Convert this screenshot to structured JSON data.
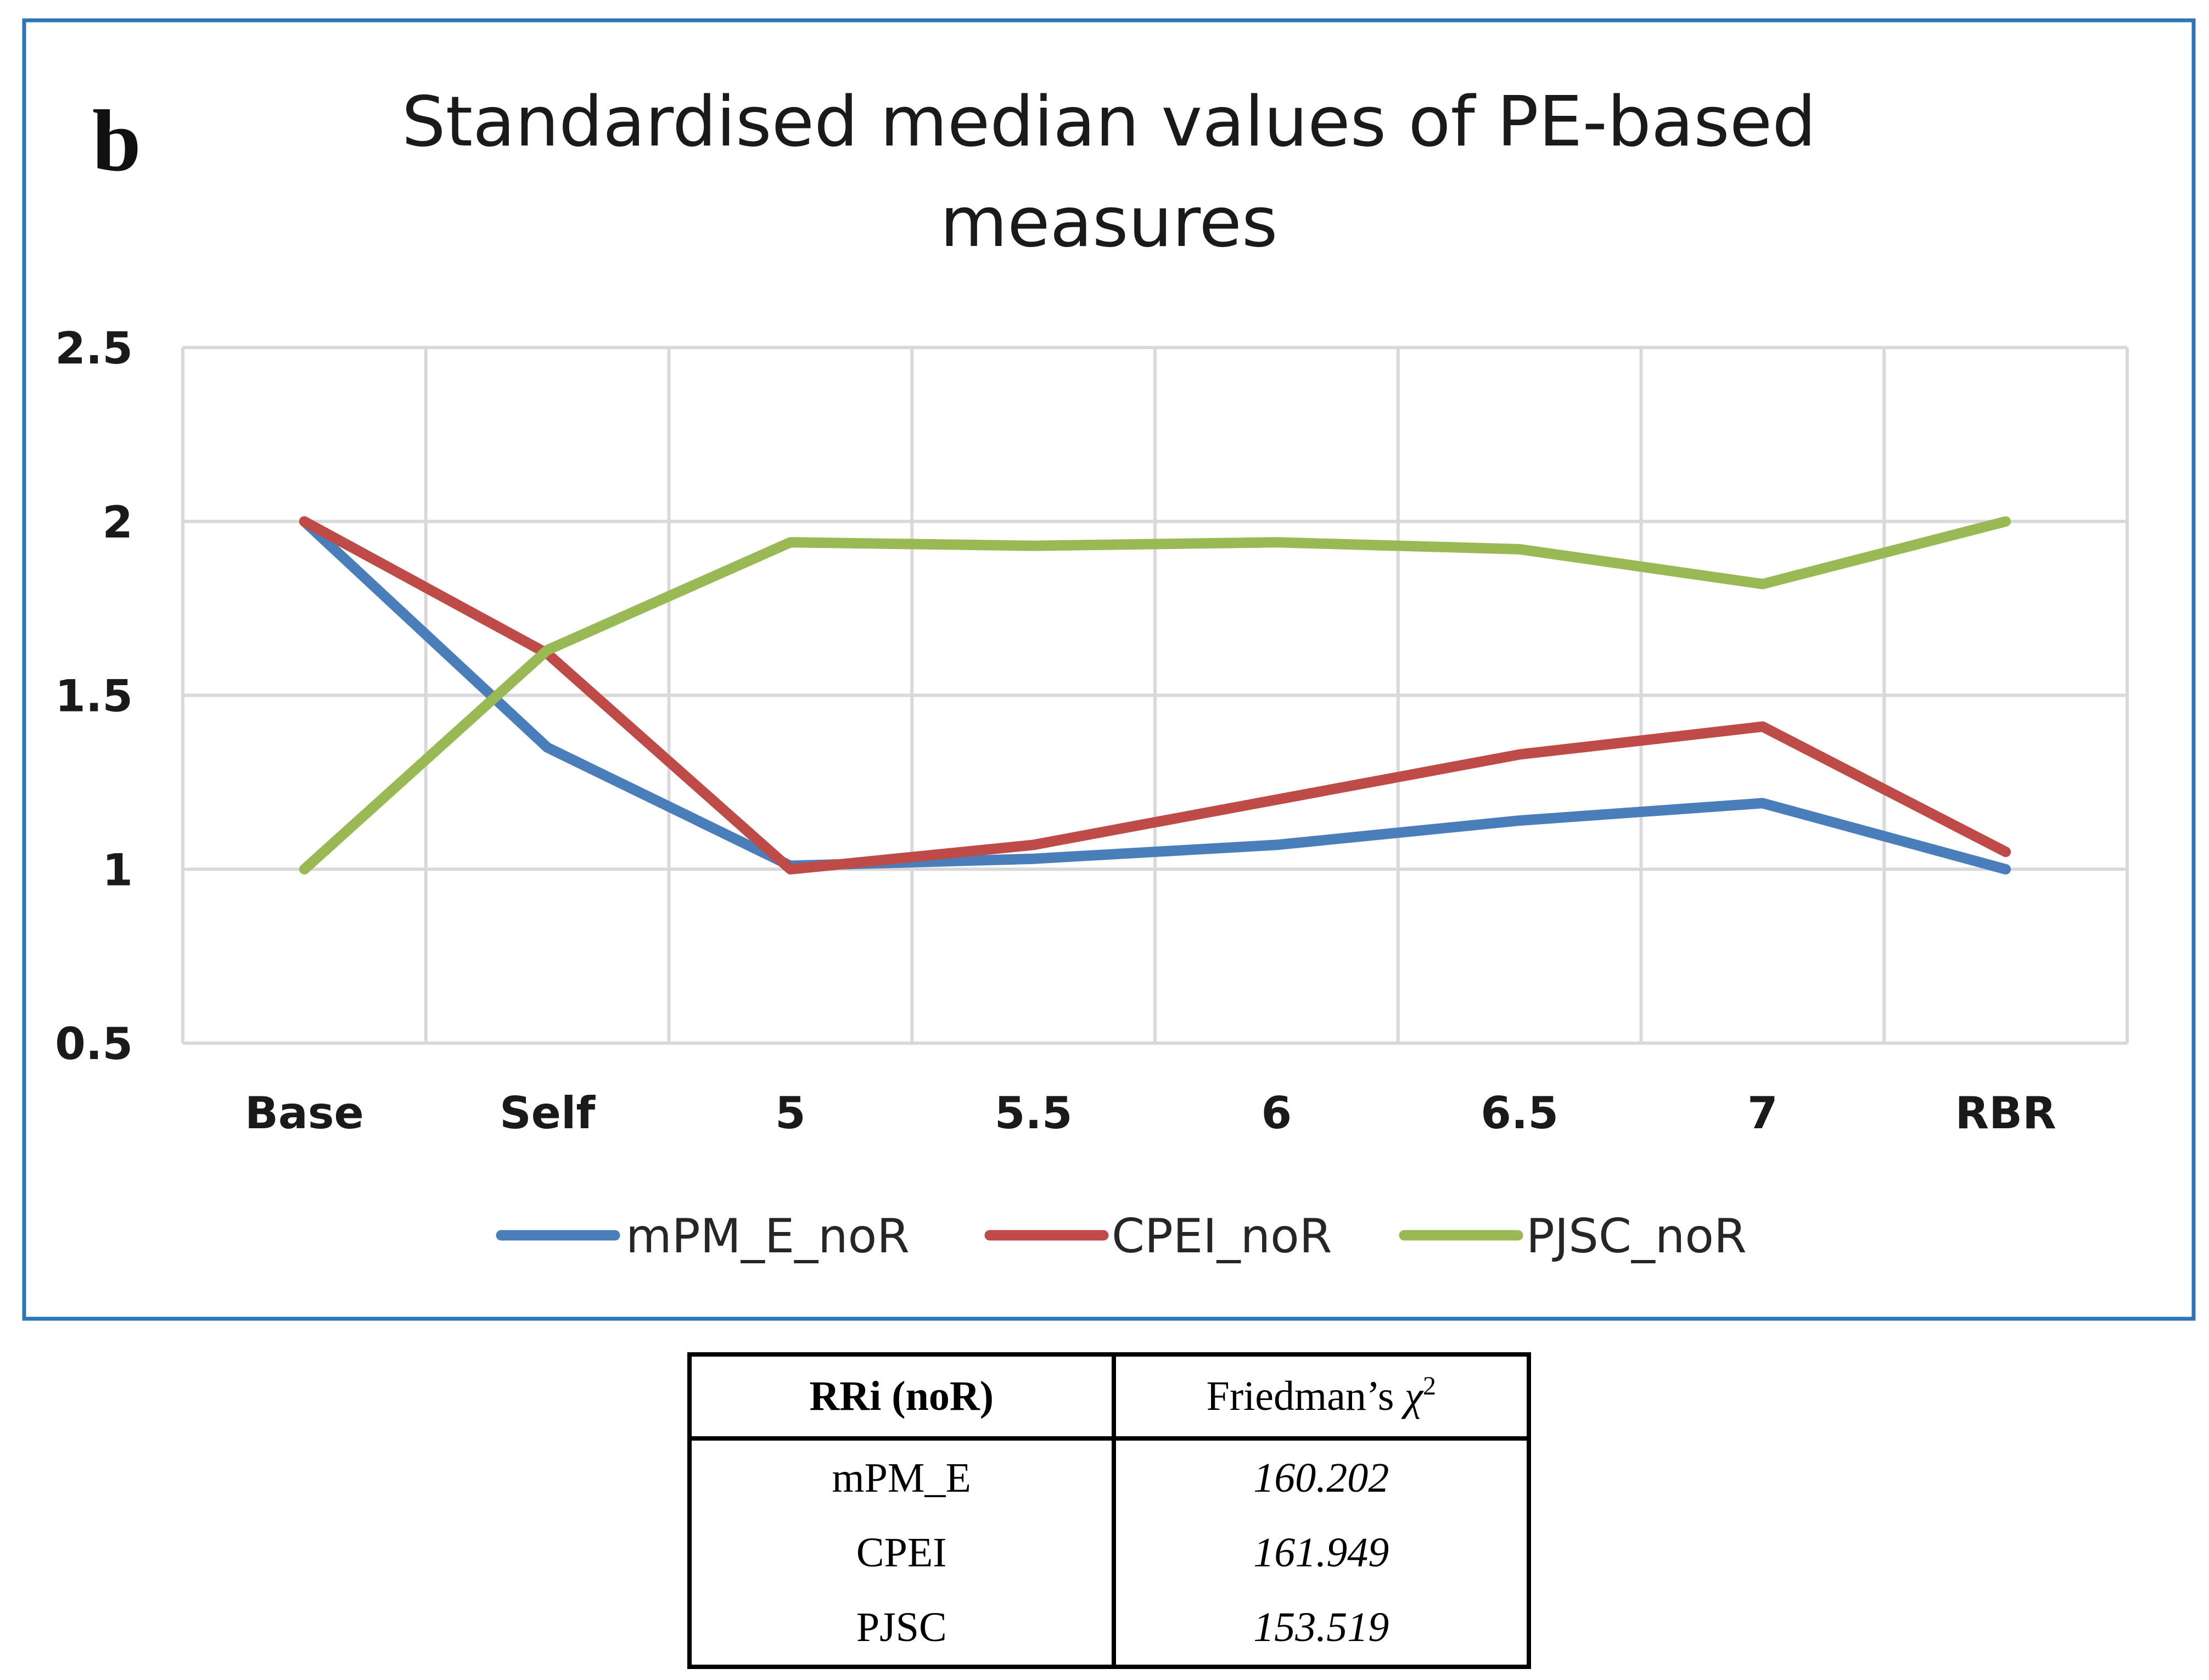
{
  "panel_label": "b",
  "chart_data": {
    "type": "line",
    "title_lines": [
      "Standardised median values of PE-based",
      "measures"
    ],
    "categories": [
      "Base",
      "Self",
      "5",
      "5.5",
      "6",
      "6.5",
      "7",
      "RBR"
    ],
    "y_ticks": [
      "2.5",
      "2",
      "1.5",
      "1",
      "0.5"
    ],
    "ylim": [
      0.5,
      2.5
    ],
    "grid": true,
    "legend_position": "bottom",
    "series": [
      {
        "name": "mPM_E_noR",
        "color": "#4a7ebb",
        "values": [
          2.0,
          1.35,
          1.01,
          1.03,
          1.07,
          1.14,
          1.19,
          1.0
        ]
      },
      {
        "name": "CPEI_noR",
        "color": "#be4b48",
        "values": [
          2.0,
          1.62,
          1.0,
          1.07,
          1.2,
          1.33,
          1.41,
          1.05
        ]
      },
      {
        "name": "PJSC_noR",
        "color": "#98b954",
        "values": [
          1.0,
          1.63,
          1.94,
          1.93,
          1.94,
          1.92,
          1.82,
          2.0
        ]
      }
    ]
  },
  "table": {
    "header_left": "RRi (noR)",
    "header_right_text": "Friedman’s ",
    "header_right_symbol": "χ",
    "header_right_sup": "2",
    "rows": [
      {
        "label": "mPM_E",
        "value": "160.202"
      },
      {
        "label": "CPEI",
        "value": "161.949"
      },
      {
        "label": "PJSC",
        "value": "153.519"
      }
    ]
  }
}
